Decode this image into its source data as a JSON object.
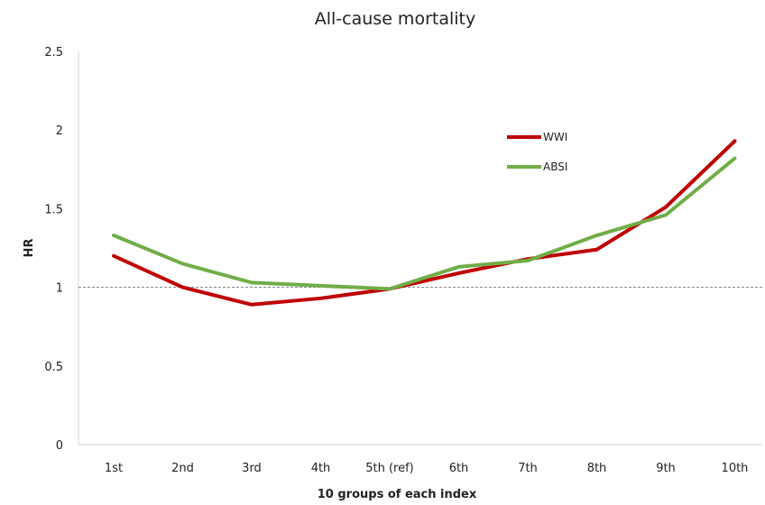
{
  "chart_data": {
    "type": "line",
    "title": "All-cause mortality",
    "xlabel": "10 groups of each index",
    "ylabel": "HR",
    "categories": [
      "1st",
      "2nd",
      "3rd",
      "4th",
      "5th (ref)",
      "6th",
      "7th",
      "8th",
      "9th",
      "10th"
    ],
    "ylim": [
      0,
      2.5
    ],
    "yticks": [
      "0",
      "0.5",
      "1",
      "1.5",
      "2",
      "2.5"
    ],
    "reference_line": 1,
    "grid": false,
    "legend_position": "top-right",
    "series": [
      {
        "name": "WWI",
        "color": "#c00000",
        "values": [
          1.2,
          1.0,
          0.89,
          0.93,
          0.99,
          1.09,
          1.18,
          1.24,
          1.51,
          1.93
        ]
      },
      {
        "name": "ABSI",
        "color": "#70ad47",
        "values": [
          1.33,
          1.15,
          1.03,
          1.01,
          0.99,
          1.13,
          1.17,
          1.33,
          1.46,
          1.82
        ]
      }
    ]
  }
}
